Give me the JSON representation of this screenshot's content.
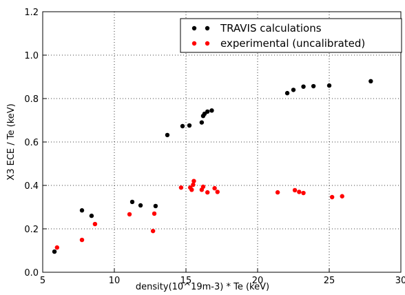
{
  "chart_data": {
    "type": "scatter",
    "xlabel": "density(10^19m-3) * Te (keV)",
    "ylabel": "X3 ECE / Te (keV)",
    "xlim": [
      5,
      30
    ],
    "ylim": [
      0,
      1.2
    ],
    "xticks": [
      5,
      10,
      15,
      20,
      25,
      30
    ],
    "yticks": [
      {
        "value": 0,
        "label": "0.0"
      },
      {
        "value": 0.2,
        "label": "0.2"
      },
      {
        "value": 0.4,
        "label": "0.4"
      },
      {
        "value": 0.6,
        "label": "0.6"
      },
      {
        "value": 0.8,
        "label": "0.8"
      },
      {
        "value": 1.0,
        "label": "1.0"
      },
      {
        "value": 1.2,
        "label": "1.2"
      }
    ],
    "grid": true,
    "legend": "upper right",
    "series": [
      {
        "name": "TRAVIS calculations",
        "color": "#000000",
        "x": [
          5.82,
          7.74,
          8.41,
          11.25,
          11.83,
          12.88,
          13.7,
          14.76,
          15.24,
          16.1,
          16.2,
          16.3,
          16.5,
          16.8,
          22.07,
          22.5,
          23.2,
          23.9,
          25.0,
          27.9
        ],
        "values": [
          0.095,
          0.285,
          0.26,
          0.324,
          0.308,
          0.305,
          0.632,
          0.673,
          0.676,
          0.69,
          0.72,
          0.73,
          0.74,
          0.745,
          0.825,
          0.84,
          0.855,
          0.857,
          0.86,
          0.88
        ]
      },
      {
        "name": "experimental (uncalibrated)",
        "color": "#ff0000",
        "x": [
          6.0,
          7.74,
          8.65,
          11.06,
          12.7,
          12.79,
          14.66,
          15.3,
          15.4,
          15.5,
          15.55,
          16.1,
          16.2,
          16.5,
          17.0,
          17.2,
          21.4,
          22.6,
          22.9,
          23.2,
          25.2,
          25.9
        ],
        "values": [
          0.114,
          0.149,
          0.222,
          0.267,
          0.19,
          0.27,
          0.39,
          0.39,
          0.38,
          0.403,
          0.42,
          0.38,
          0.394,
          0.368,
          0.387,
          0.37,
          0.368,
          0.378,
          0.37,
          0.365,
          0.346,
          0.35
        ]
      }
    ]
  }
}
